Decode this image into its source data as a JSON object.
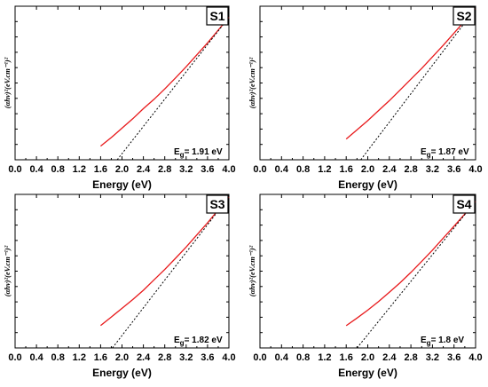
{
  "chart_data": [
    {
      "type": "line",
      "panel_label": "S1",
      "annotation": {
        "prefix": "E",
        "sub": "g",
        "value": "= 1.91 eV"
      },
      "xlabel": "Energy (eV)",
      "ylabel": "(αhν)²(eV.cm⁻¹)²",
      "xlim": [
        0.0,
        4.0
      ],
      "ylim": [
        0,
        100
      ],
      "xticks": [
        "0.0",
        "0.4",
        "0.8",
        "1.2",
        "1.6",
        "2.0",
        "2.4",
        "2.8",
        "3.2",
        "3.6",
        "4.0"
      ],
      "series": [
        {
          "kind": "data",
          "color": "#e8191b",
          "x": [
            1.6,
            1.8,
            2.0,
            2.2,
            2.4,
            2.6,
            2.8,
            3.0,
            3.2,
            3.4,
            3.6,
            3.8,
            4.0
          ],
          "y": [
            8.9,
            14.5,
            20.6,
            26.7,
            33.3,
            39.4,
            46.1,
            53.3,
            60.6,
            68.3,
            76.1,
            84.4,
            92.8
          ]
        },
        {
          "kind": "fit",
          "color": "#000000",
          "dash": "2,2",
          "x": [
            1.91,
            4.0
          ],
          "y": [
            0,
            92.8
          ]
        }
      ]
    },
    {
      "type": "line",
      "panel_label": "S2",
      "annotation": {
        "prefix": "E",
        "sub": "g",
        "value": "= 1.87 eV"
      },
      "xlabel": "Energy (eV)",
      "ylabel": "(αhν)²(eV.cm⁻¹)²",
      "xlim": [
        0.0,
        4.0
      ],
      "ylim": [
        0,
        100
      ],
      "xticks": [
        "0.0",
        "0.4",
        "0.8",
        "1.2",
        "1.6",
        "2.0",
        "2.4",
        "2.8",
        "3.2",
        "3.6",
        "4.0"
      ],
      "series": [
        {
          "kind": "data",
          "color": "#e8191b",
          "x": [
            1.6,
            1.8,
            2.0,
            2.2,
            2.4,
            2.6,
            2.8,
            3.0,
            3.2,
            3.4,
            3.6,
            3.8,
            4.0
          ],
          "y": [
            13.5,
            19.5,
            25.5,
            32.0,
            38.5,
            45.5,
            52.5,
            59.5,
            67.0,
            74.5,
            82.5,
            90.5,
            98.5
          ]
        },
        {
          "kind": "fit",
          "color": "#000000",
          "dash": "2,2",
          "x": [
            1.87,
            4.0
          ],
          "y": [
            0,
            98.5
          ]
        }
      ]
    },
    {
      "type": "line",
      "panel_label": "S3",
      "annotation": {
        "prefix": "E",
        "sub": "g",
        "value": "= 1.82 eV"
      },
      "xlabel": "Energy (eV)",
      "ylabel": "(αhν)²(eV.cm⁻¹)²",
      "xlim": [
        0.0,
        4.0
      ],
      "ylim": [
        0,
        100
      ],
      "xticks": [
        "0.0",
        "0.4",
        "0.8",
        "1.2",
        "1.6",
        "2.0",
        "2.4",
        "2.8",
        "3.2",
        "3.6",
        "4.0"
      ],
      "series": [
        {
          "kind": "data",
          "color": "#e8191b",
          "x": [
            1.6,
            1.8,
            2.0,
            2.2,
            2.4,
            2.6,
            2.8,
            3.0,
            3.2,
            3.4,
            3.6,
            3.8,
            4.0
          ],
          "y": [
            14.6,
            20.2,
            25.8,
            31.5,
            37.6,
            44.4,
            51.1,
            58.4,
            65.7,
            73.6,
            81.5,
            89.9,
            98.3
          ]
        },
        {
          "kind": "fit",
          "color": "#000000",
          "dash": "2,2",
          "x": [
            1.82,
            4.0
          ],
          "y": [
            0,
            98.3
          ]
        }
      ]
    },
    {
      "type": "line",
      "panel_label": "S4",
      "annotation": {
        "prefix": "E",
        "sub": "g",
        "value": "= 1.8 eV"
      },
      "xlabel": "Energy (eV)",
      "ylabel": "(αhν)²(eV.cm⁻¹)²",
      "xlim": [
        0.0,
        4.0
      ],
      "ylim": [
        0,
        100
      ],
      "xticks": [
        "0.0",
        "0.4",
        "0.8",
        "1.2",
        "1.6",
        "2.0",
        "2.4",
        "2.8",
        "3.2",
        "3.6",
        "4.0"
      ],
      "series": [
        {
          "kind": "data",
          "color": "#e8191b",
          "x": [
            1.6,
            1.8,
            2.0,
            2.2,
            2.4,
            2.6,
            2.8,
            3.0,
            3.2,
            3.4,
            3.6,
            3.8,
            4.0
          ],
          "y": [
            14.5,
            19.5,
            24.6,
            30.2,
            36.3,
            42.5,
            49.2,
            56.4,
            63.7,
            71.5,
            79.3,
            87.2,
            95.5
          ]
        },
        {
          "kind": "fit",
          "color": "#000000",
          "dash": "2,2",
          "x": [
            1.8,
            4.0
          ],
          "y": [
            0,
            95.5
          ]
        }
      ]
    }
  ]
}
